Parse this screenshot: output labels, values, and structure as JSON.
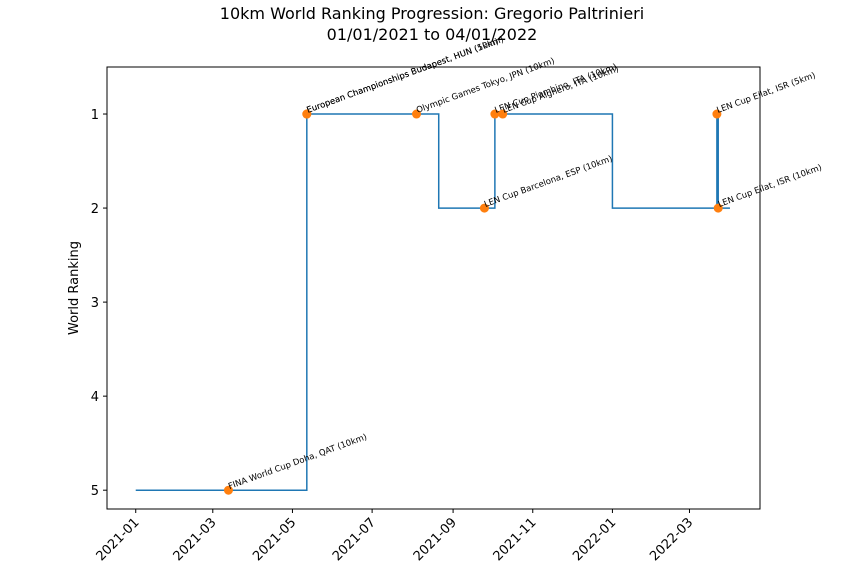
{
  "chart_data": {
    "type": "step",
    "title": "10km World Ranking Progression: Gregorio Paltrinieri",
    "subtitle": "01/01/2021 to 04/01/2022",
    "y_label": "World Ranking",
    "xlim": [
      "2020-12-10",
      "2022-04-24"
    ],
    "xticks": [
      "2021-01",
      "2021-03",
      "2021-05",
      "2021-07",
      "2021-09",
      "2021-11",
      "2022-01",
      "2022-03"
    ],
    "ylim": [
      5.2,
      0.5
    ],
    "yticks": [
      1,
      2,
      3,
      4,
      5
    ],
    "y_inverted": true,
    "line": {
      "color": "#1f77b4",
      "x": [
        "2021-01-01",
        "2021-05-12",
        "2021-08-21",
        "2021-10-03",
        "2022-01-01",
        "2022-03-22",
        "2022-03-23",
        "2022-04-01"
      ],
      "values": [
        5,
        1,
        2,
        1,
        2,
        1,
        2,
        2
      ]
    },
    "events": {
      "color": "#ff7f0e",
      "x": [
        "2021-03-13",
        "2021-05-12",
        "2021-05-12",
        "2021-08-04",
        "2021-09-25",
        "2021-10-03",
        "2021-10-09",
        "2022-03-22",
        "2022-03-23"
      ],
      "values": [
        5,
        1,
        1,
        1,
        2,
        1,
        1,
        1,
        2
      ],
      "labels": [
        "FINA World Cup Doha, QAT (10km)",
        "European Championships Budapest, HUN (5km)",
        "European Championships Budapest, HUN (10km)",
        "Olympic Games Tokyo, JPN (10km)",
        "LEN Cup Barcelona, ESP (10km)",
        "LEN Cup Piombino, ITA (10km)",
        "LEN Cup Alghero, ITA (10km)",
        "LEN Cup Eilat, ISR (5km)",
        "LEN Cup Eilat, ISR (10km)"
      ]
    }
  }
}
